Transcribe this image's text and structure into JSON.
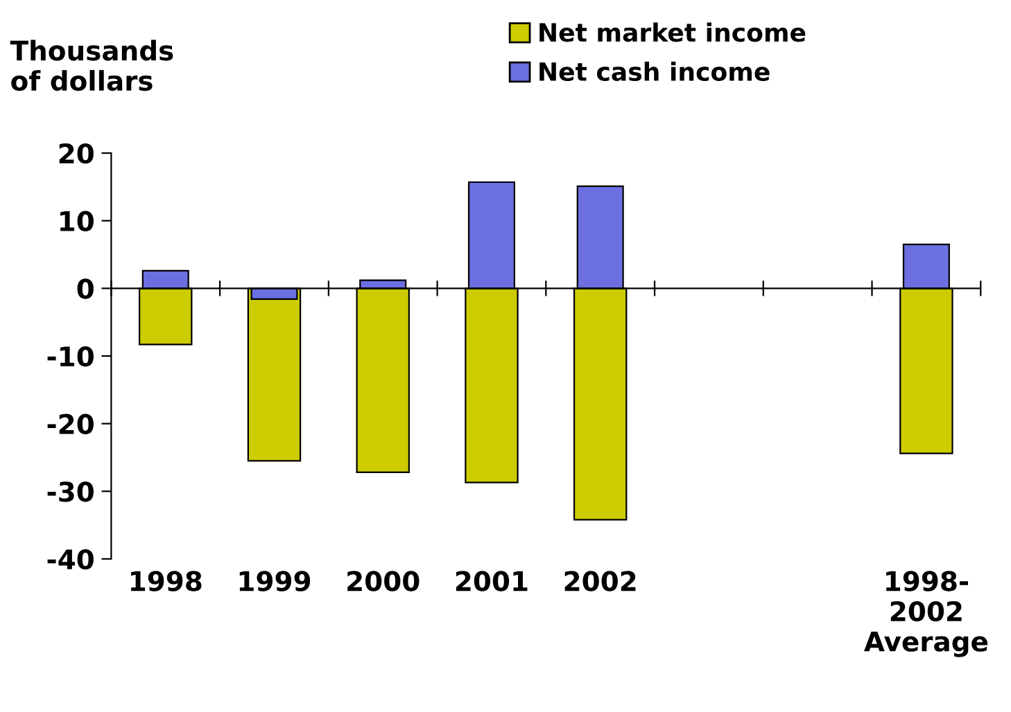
{
  "chart_data": {
    "type": "bar",
    "ylabel": "Thousands\nof dollars",
    "categories": [
      "1998",
      "1999",
      "2000",
      "2001",
      "2002",
      null,
      null,
      "1998-\n2002\nAverage"
    ],
    "series": [
      {
        "name": "Net market income",
        "color": "#cccc00",
        "values": [
          -8.3,
          -25.5,
          -27.2,
          -28.7,
          -34.2,
          null,
          null,
          -24.4
        ]
      },
      {
        "name": "Net cash income",
        "color": "#6b6fe0",
        "values": [
          2.6,
          -1.6,
          1.2,
          15.7,
          15.1,
          null,
          null,
          6.5
        ]
      }
    ],
    "ylim": [
      -40,
      20
    ],
    "yticks": [
      -40,
      -30,
      -20,
      -10,
      0,
      10,
      20
    ],
    "legend": "top right"
  }
}
